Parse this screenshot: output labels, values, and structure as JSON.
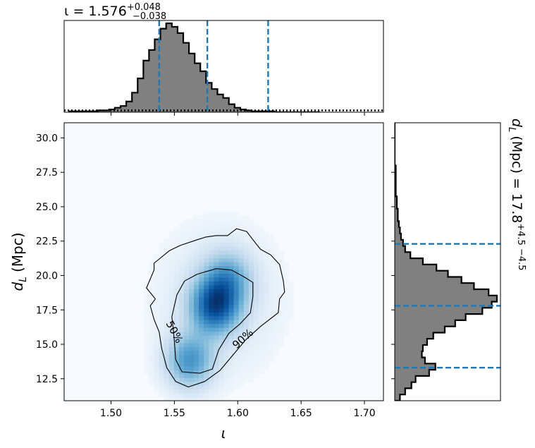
{
  "chart_data": [
    {
      "type": "heatmap",
      "panel": "joint",
      "xlabel": "ι",
      "ylabel_main": "d",
      "ylabel_sub": "L",
      "ylabel_unit": "(Mpc)",
      "xlim": [
        1.463,
        1.715
      ],
      "ylim": [
        10.9,
        31.1
      ],
      "xticks": [
        1.5,
        1.55,
        1.6,
        1.65,
        1.7
      ],
      "xtick_labels": [
        "1.50",
        "1.55",
        "1.60",
        "1.65",
        "1.70"
      ],
      "yticks": [
        12.5,
        15.0,
        17.5,
        20.0,
        22.5,
        25.0,
        27.5,
        30.0
      ],
      "ytick_labels": [
        "12.5",
        "15.0",
        "17.5",
        "20.0",
        "22.5",
        "25.0",
        "27.5",
        "30.0"
      ],
      "colormap": "Blues",
      "density_peaks": [
        {
          "x": 1.582,
          "y": 17.8,
          "amplitude": 1.0
        },
        {
          "x": 1.562,
          "y": 13.8,
          "amplitude": 0.7
        },
        {
          "x": 1.592,
          "y": 19.8,
          "amplitude": 0.55
        }
      ],
      "contours": [
        {
          "label": "50%",
          "points": [
            [
              1.548,
              17.0
            ],
            [
              1.552,
              18.6
            ],
            [
              1.558,
              19.6
            ],
            [
              1.568,
              20.1
            ],
            [
              1.583,
              20.5
            ],
            [
              1.595,
              20.4
            ],
            [
              1.605,
              19.9
            ],
            [
              1.612,
              19.5
            ],
            [
              1.612,
              18.5
            ],
            [
              1.61,
              17.3
            ],
            [
              1.602,
              16.5
            ],
            [
              1.593,
              15.8
            ],
            [
              1.585,
              14.6
            ],
            [
              1.58,
              13.2
            ],
            [
              1.57,
              12.9
            ],
            [
              1.556,
              13.0
            ],
            [
              1.551,
              13.9
            ],
            [
              1.55,
              15.2
            ],
            [
              1.549,
              16.2
            ],
            [
              1.548,
              17.0
            ]
          ]
        },
        {
          "label": "90%",
          "points": [
            [
              1.535,
              18.3
            ],
            [
              1.528,
              19.1
            ],
            [
              1.534,
              20.4
            ],
            [
              1.534,
              20.9
            ],
            [
              1.546,
              21.8
            ],
            [
              1.555,
              22.2
            ],
            [
              1.568,
              22.6
            ],
            [
              1.575,
              22.8
            ],
            [
              1.583,
              22.9
            ],
            [
              1.592,
              22.9
            ],
            [
              1.599,
              23.4
            ],
            [
              1.607,
              23.2
            ],
            [
              1.612,
              22.6
            ],
            [
              1.618,
              21.9
            ],
            [
              1.626,
              21.5
            ],
            [
              1.633,
              20.8
            ],
            [
              1.636,
              19.6
            ],
            [
              1.637,
              18.8
            ],
            [
              1.633,
              18.3
            ],
            [
              1.632,
              17.3
            ],
            [
              1.618,
              16.3
            ],
            [
              1.606,
              15.3
            ],
            [
              1.596,
              14.2
            ],
            [
              1.586,
              13.1
            ],
            [
              1.574,
              12.3
            ],
            [
              1.561,
              11.9
            ],
            [
              1.551,
              12.3
            ],
            [
              1.544,
              13.3
            ],
            [
              1.54,
              14.7
            ],
            [
              1.538,
              15.9
            ],
            [
              1.534,
              16.8
            ],
            [
              1.531,
              17.8
            ],
            [
              1.535,
              18.3
            ]
          ]
        }
      ],
      "contour_label_positions": [
        {
          "label": "50%",
          "x": 1.55,
          "y": 15.9,
          "angle": 62
        },
        {
          "label": "90%",
          "x": 1.604,
          "y": 15.4,
          "angle": -42
        }
      ]
    },
    {
      "type": "area",
      "panel": "top-marginal",
      "title_prefix": "ι = 1.576",
      "title_plus": "+0.048",
      "title_minus": "−0.038",
      "xlim": [
        1.463,
        1.715
      ],
      "bin_edges_start": 1.467,
      "bin_width": 0.0045,
      "counts": [
        1,
        1,
        1,
        1,
        1,
        2,
        2,
        3,
        5,
        7,
        12,
        22,
        38,
        58,
        70,
        82,
        94,
        100,
        96,
        89,
        78,
        66,
        55,
        46,
        33,
        26,
        20,
        16,
        9,
        5,
        3,
        2,
        1,
        1,
        1,
        1,
        0,
        0,
        0,
        0,
        0,
        0,
        0,
        0
      ],
      "prior_level": 2,
      "quantiles": [
        1.538,
        1.576,
        1.624
      ],
      "colors": {
        "fill": "#808080",
        "edge": "#000000",
        "quantile": "#1f77b4"
      }
    },
    {
      "type": "area",
      "panel": "right-marginal",
      "title_prefix": "d",
      "title_sub": "L",
      "title_unit": "(Mpc) = 17.8",
      "title_plus": "+4.5",
      "title_minus": "−4.5",
      "ylim": [
        10.9,
        31.1
      ],
      "bin_edges_start": 10.9,
      "bin_width": 0.45,
      "counts": [
        5,
        10,
        16,
        20,
        33,
        39,
        29,
        26,
        27,
        31,
        37,
        48,
        58,
        68,
        84,
        93,
        98,
        90,
        76,
        64,
        51,
        40,
        27,
        15,
        10,
        8,
        6,
        5,
        4,
        3,
        3,
        2,
        2,
        1,
        1,
        1,
        1,
        1,
        0,
        0,
        0,
        0,
        0,
        0,
        0
      ],
      "quantiles": [
        13.3,
        17.8,
        22.3
      ],
      "colors": {
        "fill": "#808080",
        "edge": "#000000",
        "quantile": "#1f77b4"
      }
    }
  ]
}
